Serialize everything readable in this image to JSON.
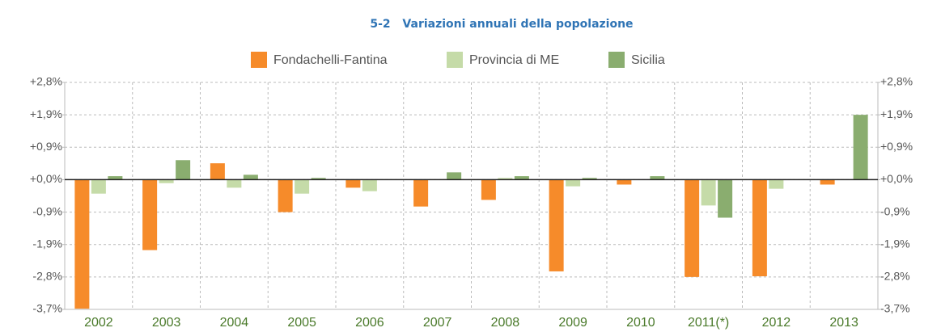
{
  "chart_data": {
    "type": "bar",
    "figure_number": "5-2",
    "title": "Variazioni annuali della popolazione",
    "categories": [
      "2002",
      "2003",
      "2004",
      "2005",
      "2006",
      "2007",
      "2008",
      "2009",
      "2010",
      "2011(*)",
      "2012",
      "2013"
    ],
    "series": [
      {
        "name": "Fondachelli-Fantina",
        "color": "#f68b2a",
        "values": [
          -3.7,
          -2.02,
          0.47,
          -0.93,
          -0.23,
          -0.77,
          -0.58,
          -2.63,
          -0.14,
          -2.79,
          -2.77,
          -0.14
        ]
      },
      {
        "name": "Provincia di ME",
        "color": "#c5dba8",
        "values": [
          -0.4,
          -0.1,
          -0.23,
          -0.4,
          -0.33,
          0,
          0.05,
          -0.19,
          0,
          -0.74,
          -0.26,
          0
        ]
      },
      {
        "name": "Sicilia",
        "color": "#8aad6f",
        "values": [
          0.1,
          0.56,
          0.14,
          0.05,
          0,
          0.21,
          0.1,
          0.05,
          0.1,
          -1.09,
          0,
          1.86
        ]
      }
    ],
    "ylim": [
      -3.72,
      2.79
    ],
    "yticks": [
      {
        "value": 2.79,
        "label": "+2,8%"
      },
      {
        "value": 1.86,
        "label": "+1,9%"
      },
      {
        "value": 0.93,
        "label": "+0,9%"
      },
      {
        "value": 0,
        "label": "+0,0%"
      },
      {
        "value": -0.93,
        "label": "-0,9%"
      },
      {
        "value": -1.86,
        "label": "-1,9%"
      },
      {
        "value": -2.79,
        "label": "-2,8%"
      },
      {
        "value": -3.72,
        "label": "-3,7%"
      }
    ],
    "y2lim": [
      -3.72,
      2.79
    ],
    "y2ticks": [
      {
        "value": 2.79,
        "label": "+2,8%"
      },
      {
        "value": 1.86,
        "label": "+1,9%"
      },
      {
        "value": 0.93,
        "label": "+0,9%"
      },
      {
        "value": 0,
        "label": "+0,0%"
      },
      {
        "value": -0.93,
        "label": "-0,9%"
      },
      {
        "value": -1.86,
        "label": "-1,9%"
      },
      {
        "value": -2.79,
        "label": "-2,8%"
      },
      {
        "value": -3.72,
        "label": "-3,7%"
      }
    ],
    "grid": true,
    "legend": "top"
  }
}
